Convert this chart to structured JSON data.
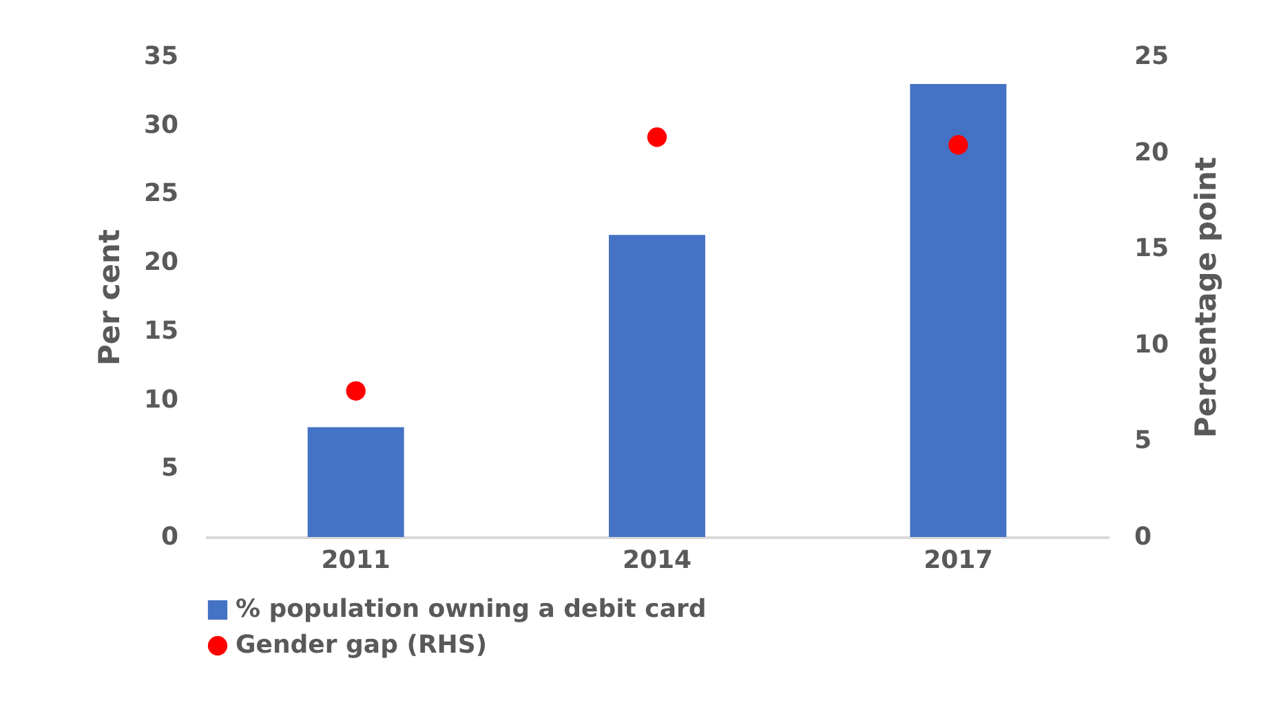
{
  "chart_data": {
    "type": "bar",
    "categories": [
      "2011",
      "2014",
      "2017"
    ],
    "ylabel": "Per cent",
    "y2label": "Percentage point",
    "series": [
      {
        "name": "% population owning a debit card",
        "color": "#4472c4",
        "values": [
          8,
          22,
          33
        ]
      },
      {
        "name": "Gender gap (RHS)",
        "type": "scatter",
        "axis": "y2",
        "color": "#ff0000",
        "values": [
          7.6,
          20.8,
          20.4
        ]
      }
    ],
    "ylim": [
      0,
      35
    ],
    "yticks": [
      0,
      5,
      10,
      15,
      20,
      25,
      30,
      35
    ],
    "y2lim": [
      0,
      25
    ],
    "y2ticks": [
      0,
      5,
      10,
      15,
      20,
      25
    ],
    "grid": false,
    "legend": "bottom",
    "marker": "circle"
  }
}
